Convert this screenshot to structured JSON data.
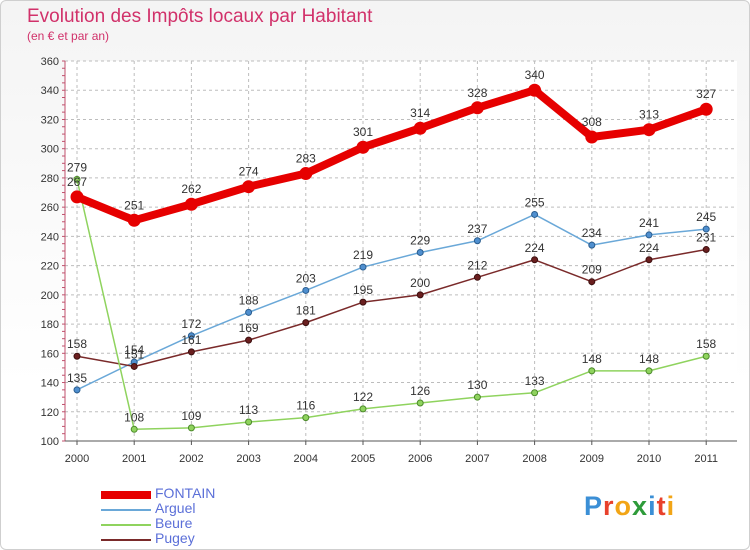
{
  "header": {
    "title": "Evolution des Impôts locaux par Habitant",
    "subtitle": "(en € et par an)"
  },
  "logo": {
    "text": "Proxiti",
    "letter_colors": [
      "#3b8fd6",
      "#e8412c",
      "#f2a516",
      "#2e9b3a",
      "#3b8fd6",
      "#e8412c",
      "#f2a516"
    ]
  },
  "chart_data": {
    "type": "line",
    "title": "Evolution des Impôts locaux par Habitant",
    "subtitle": "(en € et par an)",
    "xlabel": "",
    "ylabel": "",
    "x": [
      "2000",
      "2001",
      "2002",
      "2003",
      "2004",
      "2005",
      "2006",
      "2007",
      "2008",
      "2009",
      "2010",
      "2011"
    ],
    "ylim": [
      100,
      360
    ],
    "yticks": [
      100,
      120,
      140,
      160,
      180,
      200,
      220,
      240,
      260,
      280,
      300,
      320,
      340,
      360
    ],
    "grid": true,
    "legend_position": "bottom-left",
    "series": [
      {
        "name": "FONTAIN",
        "color": "#e60000",
        "values": [
          267,
          251,
          262,
          274,
          283,
          301,
          314,
          328,
          340,
          308,
          313,
          327
        ]
      },
      {
        "name": "Arguel",
        "color": "#6aa8d8",
        "values": [
          135,
          154,
          172,
          188,
          203,
          219,
          229,
          237,
          255,
          234,
          241,
          245
        ]
      },
      {
        "name": "Beure",
        "color": "#8fd35e",
        "values": [
          279,
          108,
          109,
          113,
          116,
          122,
          126,
          130,
          133,
          148,
          148,
          158
        ]
      },
      {
        "name": "Pugey",
        "color": "#7a2a2a",
        "values": [
          158,
          151,
          161,
          169,
          181,
          195,
          200,
          212,
          224,
          209,
          224,
          231
        ]
      }
    ]
  }
}
